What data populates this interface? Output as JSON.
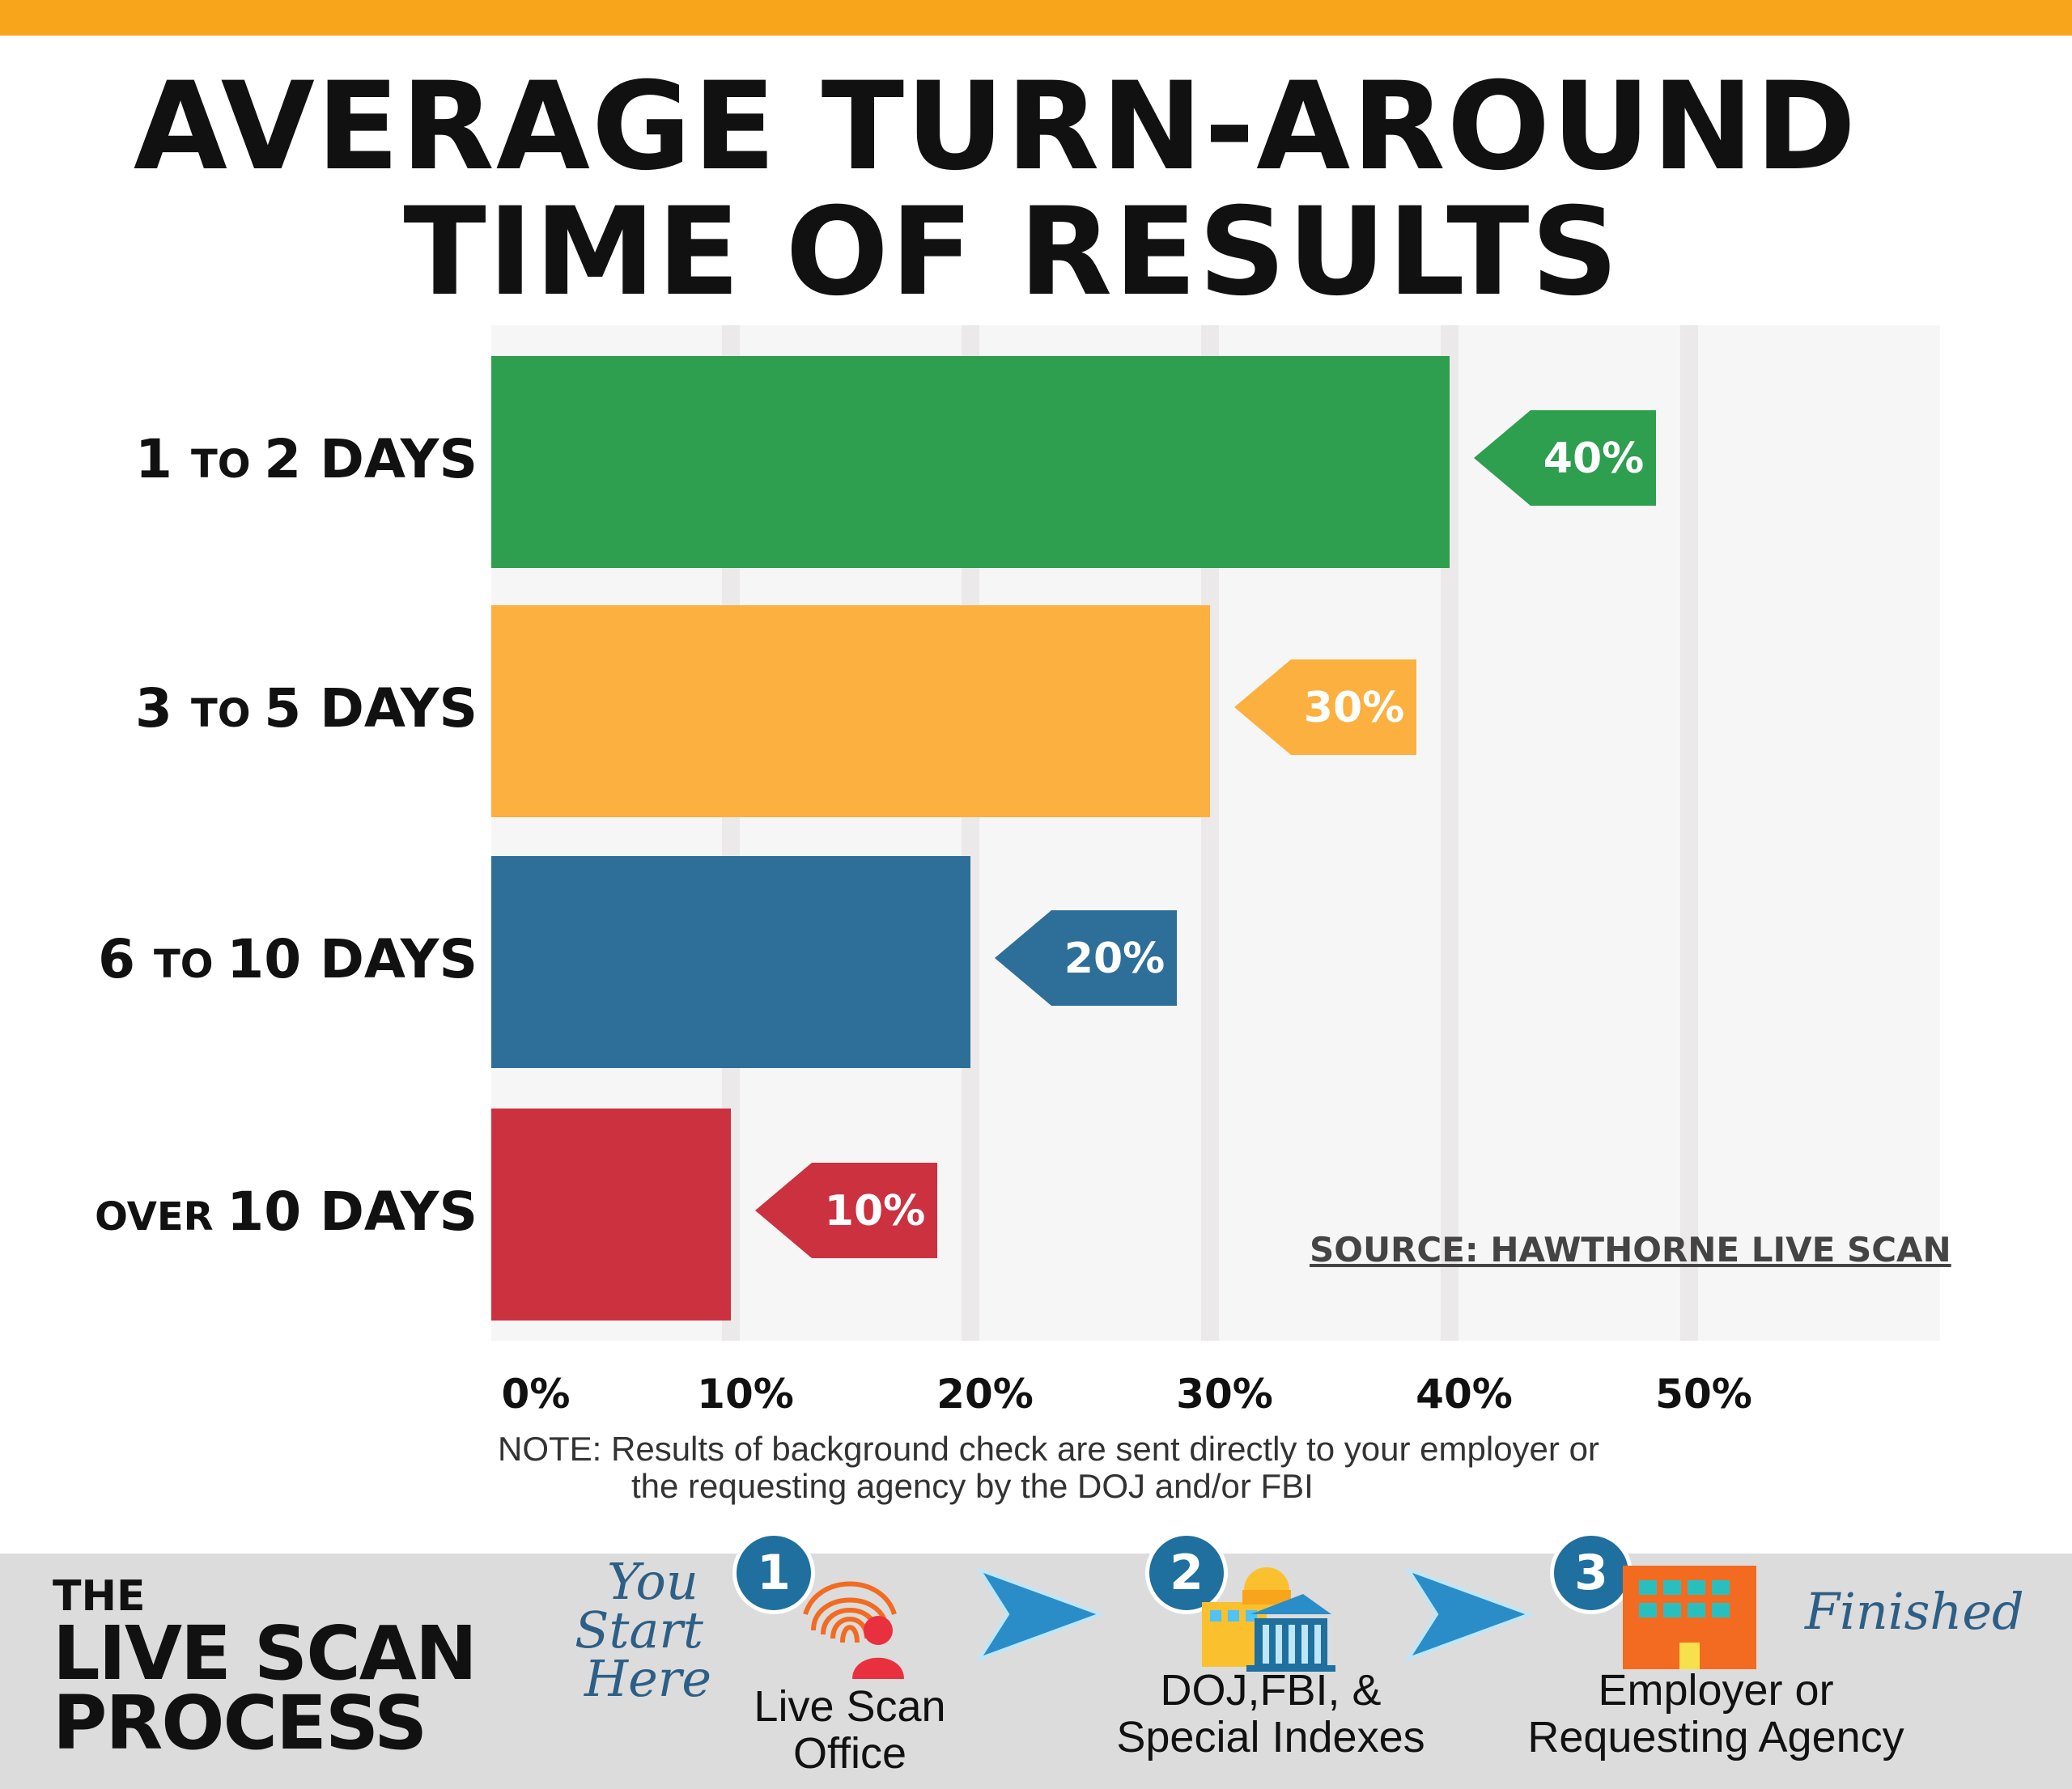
{
  "colors": {
    "top_bar": "#f9a51b",
    "green": "#2e9e4f",
    "yellow": "#fbb040",
    "blue": "#2e6f99",
    "red": "#cc3140",
    "plot_bg": "#f7f6f6",
    "grid": "#ebe9e9",
    "footer_bg": "#dcdcdc",
    "step_arrow": "#2a8dc7"
  },
  "title": {
    "line1": "AVERAGE TURN-AROUND",
    "line2": "TIME OF RESULTS"
  },
  "chart_data": {
    "type": "bar",
    "orientation": "horizontal",
    "categories": [
      "1 TO 2 DAYS",
      "3 TO 5 DAYS",
      "6 TO 10 DAYS",
      "OVER 10 DAYS"
    ],
    "category_parts": [
      {
        "a": "1",
        "b": "TO",
        "c": "2 DAYS"
      },
      {
        "a": "3",
        "b": "TO",
        "c": "5 DAYS"
      },
      {
        "a": "6",
        "b": "TO",
        "c": "10 DAYS"
      },
      {
        "a": "",
        "b": "OVER",
        "c": "10 DAYS"
      }
    ],
    "values": [
      40,
      30,
      20,
      10
    ],
    "value_labels": [
      "40%",
      "30%",
      "20%",
      "10%"
    ],
    "bar_colors": [
      "#2e9e4f",
      "#fbb040",
      "#2e6f99",
      "#cc3140"
    ],
    "xticks": [
      "0%",
      "10%",
      "20%",
      "30%",
      "40%",
      "50%"
    ],
    "xtick_values": [
      0,
      10,
      20,
      30,
      40,
      50
    ],
    "xlim": [
      0,
      60
    ],
    "grid": true,
    "xlabel": "",
    "ylabel": ""
  },
  "source": "SOURCE: HAWTHORNE  LIVE SCAN",
  "note": {
    "line1": "NOTE:  Results of background check are sent directly to your employer or",
    "line2": "the requesting agency by the DOJ and/or FBI"
  },
  "footer": {
    "brand_line1": "THE",
    "brand_line2": "LIVE SCAN",
    "brand_line3": "PROCESS",
    "start_line1": "You",
    "start_line2": "Start",
    "start_line3": "Here",
    "finished": "Finished",
    "steps": [
      {
        "number": "1",
        "line1": "Live Scan",
        "line2": "Office",
        "icon": "fingerprint-person-icon"
      },
      {
        "number": "2",
        "line1": "DOJ,FBI, &",
        "line2": "Special Indexes",
        "icon": "government-building-icon"
      },
      {
        "number": "3",
        "line1": "Employer or",
        "line2": "Requesting Agency",
        "icon": "office-building-icon"
      }
    ]
  }
}
